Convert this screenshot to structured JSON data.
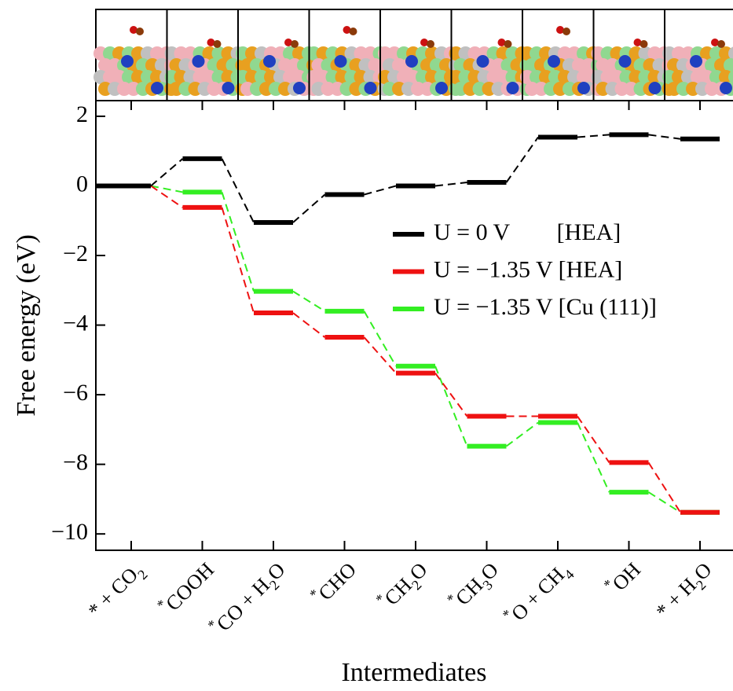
{
  "chart_data": {
    "type": "energy-levels",
    "xlabel": "Intermediates",
    "ylabel": "Free energy (eV)",
    "categories": [
      "* + CO2",
      "*COOH",
      "*CO + H2O",
      "*CHO",
      "*CH2O",
      "*CH3O",
      "*O + CH4",
      "*OH",
      "* + H2O"
    ],
    "ylim": [
      -10.47,
      2.45
    ],
    "yticks": [
      {
        "value": 2,
        "label": "2"
      },
      0,
      {
        "value": -2,
        "label": "−2"
      },
      {
        "value": -4,
        "label": "−4"
      },
      {
        "value": -6,
        "label": "−6"
      },
      {
        "value": -8,
        "label": "−8"
      },
      {
        "value": -10,
        "label": "−10"
      }
    ],
    "series": [
      {
        "name": "U = −1.35 V [Cu (111)]",
        "color": "#33ee22",
        "values": [
          0,
          -0.18,
          -3.03,
          -3.6,
          -5.18,
          -7.48,
          -6.8,
          -8.8,
          -9.38
        ]
      },
      {
        "name": "U = −1.35 V [HEA]",
        "color": "#ee1111",
        "values": [
          0,
          -0.62,
          -3.65,
          -4.35,
          -5.38,
          -6.62,
          -6.62,
          -7.95,
          -9.38
        ]
      },
      {
        "name": "U = 0 V        [HEA]",
        "color": "#000000",
        "values": [
          0,
          0.78,
          -1.05,
          -0.25,
          0.0,
          0.1,
          1.4,
          1.47,
          1.35
        ]
      }
    ],
    "legend": "upper right"
  }
}
